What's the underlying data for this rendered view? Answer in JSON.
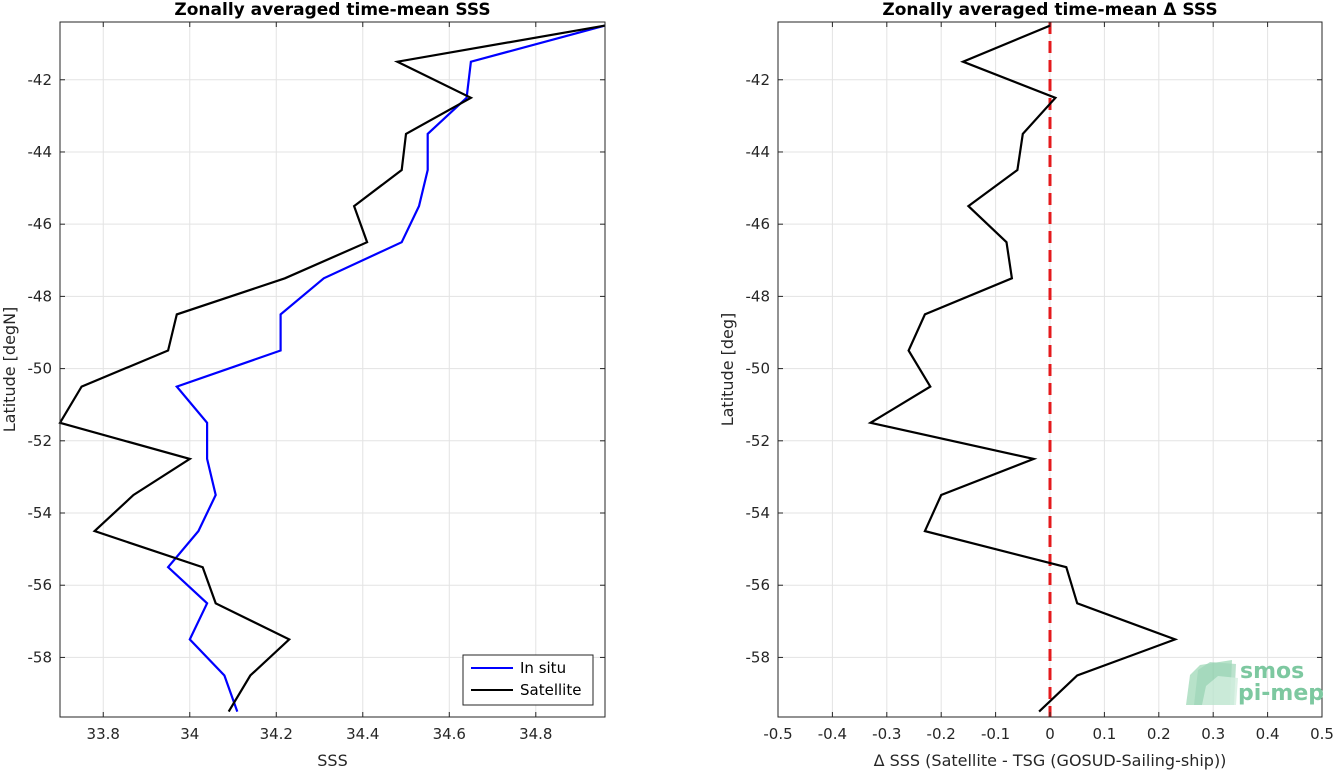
{
  "chart_data": [
    {
      "type": "line",
      "title": "Zonally averaged time-mean SSS",
      "xlabel": "SSS",
      "ylabel": "Latitude [degN]",
      "xlim": [
        33.7,
        34.96
      ],
      "ylim": [
        -59.65,
        -40.4
      ],
      "grid": true,
      "xticks": [
        33.8,
        34,
        34.2,
        34.4,
        34.6,
        34.8
      ],
      "xtick_labels": [
        "33.8",
        "34",
        "34.2",
        "34.4",
        "34.6",
        "34.8"
      ],
      "yticks": [
        -42,
        -44,
        -46,
        -48,
        -50,
        -52,
        -54,
        -56,
        -58
      ],
      "ytick_labels": [
        "-42",
        "-44",
        "-46",
        "-48",
        "-50",
        "-52",
        "-54",
        "-56",
        "-58"
      ],
      "legend_position": "bottom-right",
      "series": [
        {
          "name": "In situ",
          "color": "#0000ff",
          "points": [
            [
              34.96,
              -40.5
            ],
            [
              34.65,
              -41.5
            ],
            [
              34.64,
              -42.5
            ],
            [
              34.55,
              -43.5
            ],
            [
              34.55,
              -44.5
            ],
            [
              34.53,
              -45.5
            ],
            [
              34.49,
              -46.5
            ],
            [
              34.31,
              -47.5
            ],
            [
              34.21,
              -48.5
            ],
            [
              34.21,
              -49.5
            ],
            [
              33.97,
              -50.5
            ],
            [
              34.04,
              -51.5
            ],
            [
              34.04,
              -52.5
            ],
            [
              34.06,
              -53.5
            ],
            [
              34.02,
              -54.5
            ],
            [
              33.95,
              -55.5
            ],
            [
              34.04,
              -56.5
            ],
            [
              34.0,
              -57.5
            ],
            [
              34.08,
              -58.5
            ],
            [
              34.11,
              -59.5
            ]
          ]
        },
        {
          "name": "Satellite",
          "color": "#000000",
          "points": [
            [
              34.96,
              -40.5
            ],
            [
              34.48,
              -41.5
            ],
            [
              34.65,
              -42.5
            ],
            [
              34.5,
              -43.5
            ],
            [
              34.49,
              -44.5
            ],
            [
              34.38,
              -45.5
            ],
            [
              34.41,
              -46.5
            ],
            [
              34.22,
              -47.5
            ],
            [
              33.97,
              -48.5
            ],
            [
              33.95,
              -49.5
            ],
            [
              33.75,
              -50.5
            ],
            [
              33.7,
              -51.5
            ],
            [
              34.0,
              -52.5
            ],
            [
              33.87,
              -53.5
            ],
            [
              33.78,
              -54.5
            ],
            [
              34.03,
              -55.5
            ],
            [
              34.06,
              -56.5
            ],
            [
              34.23,
              -57.5
            ],
            [
              34.14,
              -58.5
            ],
            [
              34.09,
              -59.5
            ]
          ]
        }
      ]
    },
    {
      "type": "line",
      "title": "Zonally averaged time-mean Δ SSS",
      "xlabel": "Δ SSS (Satellite - TSG (GOSUD-Sailing-ship))",
      "ylabel": "Latitude [deg]",
      "xlim": [
        -0.5,
        0.5
      ],
      "ylim": [
        -59.65,
        -40.4
      ],
      "grid": true,
      "xticks": [
        -0.5,
        -0.4,
        -0.3,
        -0.2,
        -0.1,
        0,
        0.1,
        0.2,
        0.3,
        0.4,
        0.5
      ],
      "xtick_labels": [
        "-0.5",
        "-0.4",
        "-0.3",
        "-0.2",
        "-0.1",
        "0",
        "0.1",
        "0.2",
        "0.3",
        "0.4",
        "0.5"
      ],
      "yticks": [
        -42,
        -44,
        -46,
        -48,
        -50,
        -52,
        -54,
        -56,
        -58
      ],
      "ytick_labels": [
        "-42",
        "-44",
        "-46",
        "-48",
        "-50",
        "-52",
        "-54",
        "-56",
        "-58"
      ],
      "reference_line": {
        "x": 0,
        "color": "#e41a1c",
        "style": "dashed"
      },
      "series": [
        {
          "color": "#000000",
          "points": [
            [
              0.0,
              -40.5
            ],
            [
              -0.16,
              -41.5
            ],
            [
              0.01,
              -42.5
            ],
            [
              -0.05,
              -43.5
            ],
            [
              -0.06,
              -44.5
            ],
            [
              -0.15,
              -45.5
            ],
            [
              -0.08,
              -46.5
            ],
            [
              -0.07,
              -47.5
            ],
            [
              -0.23,
              -48.5
            ],
            [
              -0.26,
              -49.5
            ],
            [
              -0.22,
              -50.5
            ],
            [
              -0.33,
              -51.5
            ],
            [
              -0.03,
              -52.5
            ],
            [
              -0.2,
              -53.5
            ],
            [
              -0.23,
              -54.5
            ],
            [
              0.03,
              -55.5
            ],
            [
              0.05,
              -56.5
            ],
            [
              0.23,
              -57.5
            ],
            [
              0.05,
              -58.5
            ],
            [
              -0.02,
              -59.5
            ]
          ]
        }
      ]
    }
  ],
  "logo": {
    "line1": "smos",
    "line2": "pi-mep"
  }
}
